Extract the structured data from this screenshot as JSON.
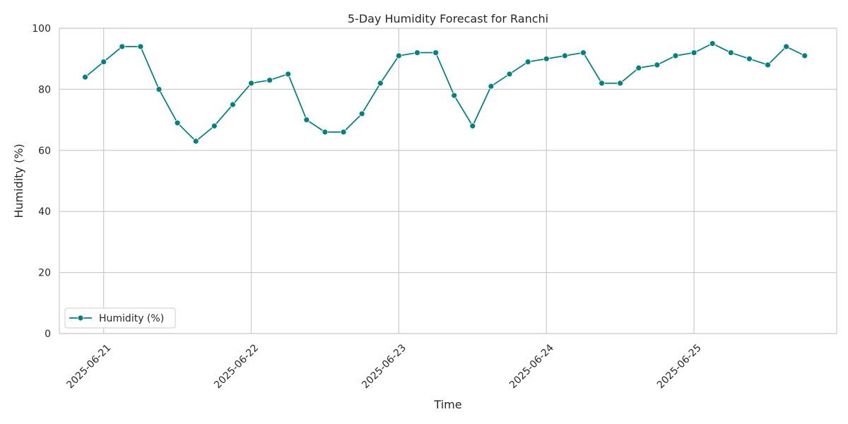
{
  "chart_data": {
    "type": "line",
    "title": "5-Day Humidity Forecast for Ranchi",
    "xlabel": "Time",
    "ylabel": "Humidity (%)",
    "ylim": [
      0,
      100
    ],
    "yticks": [
      0,
      20,
      40,
      60,
      80,
      100
    ],
    "xlim": [
      "2025-06-20T16:48",
      "2025-06-25T23:12"
    ],
    "xticks": [
      "2025-06-21",
      "2025-06-22",
      "2025-06-23",
      "2025-06-24",
      "2025-06-25"
    ],
    "grid": true,
    "legend": "lower-left",
    "series": [
      {
        "name": "Humidity (%)",
        "color": "#008080",
        "marker": "circle",
        "x": [
          "2025-06-20 21:00",
          "2025-06-21 00:00",
          "2025-06-21 03:00",
          "2025-06-21 06:00",
          "2025-06-21 09:00",
          "2025-06-21 12:00",
          "2025-06-21 15:00",
          "2025-06-21 18:00",
          "2025-06-21 21:00",
          "2025-06-22 00:00",
          "2025-06-22 03:00",
          "2025-06-22 06:00",
          "2025-06-22 09:00",
          "2025-06-22 12:00",
          "2025-06-22 15:00",
          "2025-06-22 18:00",
          "2025-06-22 21:00",
          "2025-06-23 00:00",
          "2025-06-23 03:00",
          "2025-06-23 06:00",
          "2025-06-23 09:00",
          "2025-06-23 12:00",
          "2025-06-23 15:00",
          "2025-06-23 18:00",
          "2025-06-23 21:00",
          "2025-06-24 00:00",
          "2025-06-24 03:00",
          "2025-06-24 06:00",
          "2025-06-24 09:00",
          "2025-06-24 12:00",
          "2025-06-24 15:00",
          "2025-06-24 18:00",
          "2025-06-24 21:00",
          "2025-06-25 00:00",
          "2025-06-25 03:00",
          "2025-06-25 06:00",
          "2025-06-25 09:00",
          "2025-06-25 12:00",
          "2025-06-25 15:00",
          "2025-06-25 18:00"
        ],
        "values": [
          84,
          89,
          94,
          94,
          80,
          69,
          63,
          68,
          75,
          82,
          83,
          85,
          70,
          66,
          66,
          72,
          82,
          91,
          92,
          92,
          78,
          68,
          81,
          85,
          89,
          90,
          91,
          92,
          82,
          82,
          87,
          88,
          91,
          92,
          95,
          92,
          90,
          88,
          94,
          91
        ]
      }
    ]
  }
}
